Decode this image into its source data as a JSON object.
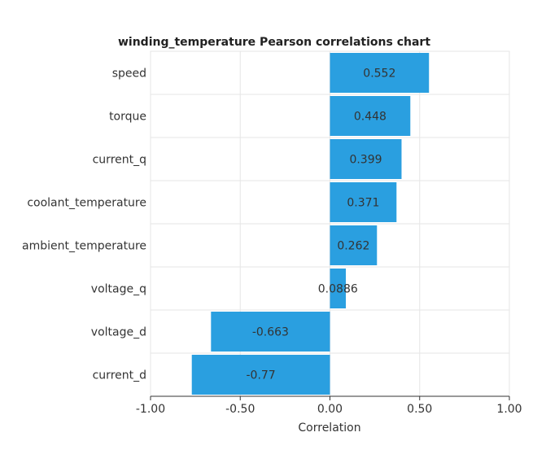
{
  "chart_data": {
    "type": "bar",
    "orientation": "horizontal",
    "title": "winding_temperature Pearson correlations chart",
    "xlabel": "Correlation",
    "ylabel": "",
    "xlim": [
      -1.0,
      1.0
    ],
    "xticks": [
      "-1.00",
      "-0.50",
      "0.00",
      "0.50",
      "1.00"
    ],
    "grid": true,
    "legend": "none",
    "bar_color": "#2a9fe0",
    "categories": [
      "speed",
      "torque",
      "current_q",
      "coolant_temperature",
      "ambient_temperature",
      "voltage_q",
      "voltage_d",
      "current_d"
    ],
    "values": [
      0.552,
      0.448,
      0.399,
      0.371,
      0.262,
      0.0886,
      -0.663,
      -0.77
    ],
    "value_labels": [
      "0.552",
      "0.448",
      "0.399",
      "0.371",
      "0.262",
      "0.0886",
      "-0.663",
      "-0.77"
    ]
  }
}
